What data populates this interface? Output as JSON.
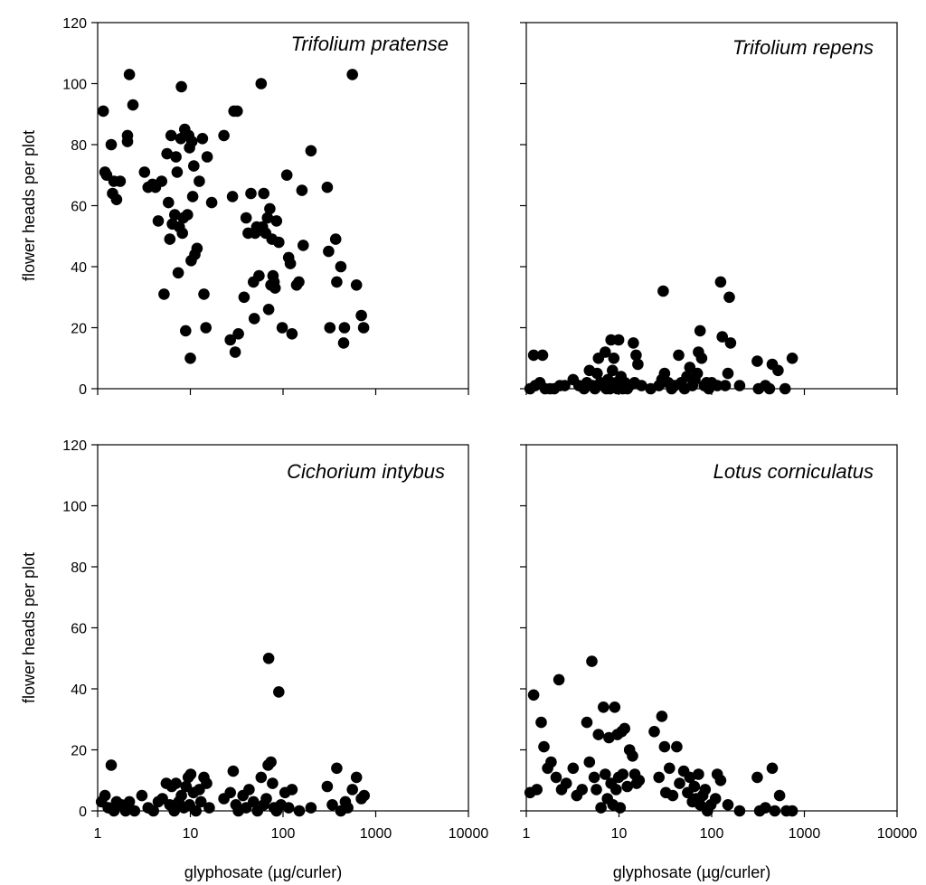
{
  "chart_data": [
    {
      "type": "scatter",
      "panel": "top-left",
      "species": "Trifolium pratense",
      "xscale": "log",
      "xlim": [
        1,
        10000
      ],
      "ylim": [
        0,
        120
      ],
      "xticks": [
        "1",
        "10",
        "100",
        "1000",
        "10000"
      ],
      "yticks": [
        "0",
        "20",
        "40",
        "60",
        "80",
        "100",
        "120"
      ],
      "show_x_tick_labels": false,
      "show_y_tick_labels": true,
      "xlabel": "",
      "ylabel": "flower heads per plot",
      "points": [
        [
          1.15,
          91
        ],
        [
          1.2,
          71
        ],
        [
          1.25,
          70
        ],
        [
          1.4,
          80
        ],
        [
          1.45,
          64
        ],
        [
          1.5,
          68
        ],
        [
          1.6,
          62
        ],
        [
          1.75,
          68
        ],
        [
          2.1,
          83
        ],
        [
          2.1,
          81
        ],
        [
          2.2,
          103
        ],
        [
          2.4,
          93
        ],
        [
          3.2,
          71
        ],
        [
          3.5,
          66
        ],
        [
          3.9,
          67
        ],
        [
          4.2,
          66
        ],
        [
          4.5,
          55
        ],
        [
          4.9,
          68
        ],
        [
          5.2,
          31
        ],
        [
          5.6,
          77
        ],
        [
          5.8,
          61
        ],
        [
          6.0,
          49
        ],
        [
          6.2,
          83
        ],
        [
          6.4,
          54
        ],
        [
          6.8,
          57
        ],
        [
          7.0,
          76
        ],
        [
          7.2,
          71
        ],
        [
          7.4,
          38
        ],
        [
          7.6,
          53
        ],
        [
          7.9,
          82
        ],
        [
          8.0,
          99
        ],
        [
          8.2,
          51
        ],
        [
          8.4,
          56
        ],
        [
          8.7,
          85
        ],
        [
          8.9,
          19
        ],
        [
          9.3,
          57
        ],
        [
          9.6,
          83
        ],
        [
          9.8,
          79
        ],
        [
          10.0,
          10
        ],
        [
          10.2,
          42
        ],
        [
          10.4,
          81
        ],
        [
          10.6,
          63
        ],
        [
          10.9,
          73
        ],
        [
          11.2,
          44
        ],
        [
          11.8,
          46
        ],
        [
          12.5,
          68
        ],
        [
          13.5,
          82
        ],
        [
          14.0,
          31
        ],
        [
          14.7,
          20
        ],
        [
          15.2,
          76
        ],
        [
          17.0,
          61
        ],
        [
          23.0,
          83
        ],
        [
          27.0,
          16
        ],
        [
          28.5,
          63
        ],
        [
          29.5,
          91
        ],
        [
          30.5,
          12
        ],
        [
          32.0,
          91
        ],
        [
          33.0,
          18
        ],
        [
          38.0,
          30
        ],
        [
          40.0,
          56
        ],
        [
          42.0,
          51
        ],
        [
          45.0,
          64
        ],
        [
          48.0,
          35
        ],
        [
          49.0,
          23
        ],
        [
          50.0,
          51
        ],
        [
          52.0,
          53
        ],
        [
          55.0,
          37
        ],
        [
          58.0,
          100
        ],
        [
          60.0,
          53
        ],
        [
          62.0,
          64
        ],
        [
          65.0,
          51
        ],
        [
          68.0,
          56
        ],
        [
          70.0,
          26
        ],
        [
          72.0,
          59
        ],
        [
          74.0,
          34
        ],
        [
          76.0,
          49
        ],
        [
          78.0,
          37
        ],
        [
          80.0,
          35
        ],
        [
          82.0,
          33
        ],
        [
          85.0,
          55
        ],
        [
          90.0,
          48
        ],
        [
          98.0,
          20
        ],
        [
          110.0,
          70
        ],
        [
          115.0,
          43
        ],
        [
          120.0,
          41
        ],
        [
          125.0,
          18
        ],
        [
          140.0,
          34
        ],
        [
          148.0,
          35
        ],
        [
          160.0,
          65
        ],
        [
          165.0,
          47
        ],
        [
          200.0,
          78
        ],
        [
          300.0,
          66
        ],
        [
          310.0,
          45
        ],
        [
          320.0,
          20
        ],
        [
          370.0,
          49
        ],
        [
          380.0,
          35
        ],
        [
          420.0,
          40
        ],
        [
          450.0,
          15
        ],
        [
          460.0,
          20
        ],
        [
          560.0,
          103
        ],
        [
          620.0,
          34
        ],
        [
          700.0,
          24
        ],
        [
          740.0,
          20
        ]
      ]
    },
    {
      "type": "scatter",
      "panel": "top-right",
      "species": "Trifolium repens",
      "xscale": "log",
      "xlim": [
        1,
        10000
      ],
      "ylim": [
        0,
        120
      ],
      "xticks": [
        "1",
        "10",
        "100",
        "1000",
        "10000"
      ],
      "yticks": [
        "0",
        "20",
        "40",
        "60",
        "80",
        "100",
        "120"
      ],
      "show_x_tick_labels": false,
      "show_y_tick_labels": false,
      "xlabel": "",
      "ylabel": "",
      "points": [
        [
          1.1,
          0
        ],
        [
          1.2,
          11
        ],
        [
          1.25,
          1
        ],
        [
          1.4,
          2
        ],
        [
          1.5,
          11
        ],
        [
          1.6,
          0
        ],
        [
          1.8,
          0
        ],
        [
          2.0,
          0
        ],
        [
          2.3,
          1
        ],
        [
          2.6,
          1
        ],
        [
          3.2,
          3
        ],
        [
          3.7,
          1
        ],
        [
          4.2,
          0
        ],
        [
          4.5,
          2
        ],
        [
          4.8,
          6
        ],
        [
          5.2,
          1
        ],
        [
          5.5,
          0
        ],
        [
          5.8,
          5
        ],
        [
          6.0,
          10
        ],
        [
          6.3,
          2
        ],
        [
          6.7,
          1
        ],
        [
          7.1,
          12
        ],
        [
          7.3,
          0
        ],
        [
          7.6,
          3
        ],
        [
          8.0,
          0
        ],
        [
          8.2,
          16
        ],
        [
          8.5,
          6
        ],
        [
          8.8,
          10
        ],
        [
          9.3,
          2
        ],
        [
          9.6,
          0
        ],
        [
          9.9,
          16
        ],
        [
          10.2,
          1
        ],
        [
          10.5,
          4
        ],
        [
          11.0,
          0
        ],
        [
          11.6,
          2
        ],
        [
          12.3,
          0
        ],
        [
          13.0,
          1
        ],
        [
          14.3,
          15
        ],
        [
          14.7,
          2
        ],
        [
          15.3,
          11
        ],
        [
          16.0,
          8
        ],
        [
          17.5,
          1
        ],
        [
          22.0,
          0
        ],
        [
          27.0,
          1
        ],
        [
          29.0,
          3
        ],
        [
          30.0,
          32
        ],
        [
          31.0,
          5
        ],
        [
          34.0,
          2
        ],
        [
          37.0,
          0
        ],
        [
          40.0,
          1
        ],
        [
          44.0,
          11
        ],
        [
          47.0,
          2
        ],
        [
          51.0,
          0
        ],
        [
          54.0,
          4
        ],
        [
          58.0,
          7
        ],
        [
          62.0,
          1
        ],
        [
          66.0,
          3
        ],
        [
          70.0,
          5
        ],
        [
          72.0,
          12
        ],
        [
          75.0,
          19
        ],
        [
          78.0,
          10
        ],
        [
          83.0,
          1
        ],
        [
          88.0,
          2
        ],
        [
          93.0,
          0
        ],
        [
          100.0,
          2
        ],
        [
          115.0,
          1
        ],
        [
          125.0,
          35
        ],
        [
          130.0,
          17
        ],
        [
          140.0,
          1
        ],
        [
          150.0,
          5
        ],
        [
          155.0,
          30
        ],
        [
          160.0,
          15
        ],
        [
          200.0,
          1
        ],
        [
          310.0,
          9
        ],
        [
          320.0,
          0
        ],
        [
          380.0,
          1
        ],
        [
          420.0,
          0
        ],
        [
          450.0,
          8
        ],
        [
          520.0,
          6
        ],
        [
          620.0,
          0
        ],
        [
          740.0,
          10
        ]
      ]
    },
    {
      "type": "scatter",
      "panel": "bottom-left",
      "species": "Cichorium intybus",
      "xscale": "log",
      "xlim": [
        1,
        10000
      ],
      "ylim": [
        0,
        120
      ],
      "xticks": [
        "1",
        "10",
        "100",
        "1000",
        "10000"
      ],
      "yticks": [
        "0",
        "20",
        "40",
        "60",
        "80",
        "100",
        "120"
      ],
      "show_x_tick_labels": true,
      "show_y_tick_labels": true,
      "xlabel": "glyphosate (µg/curler)",
      "ylabel": "flower heads per plot",
      "points": [
        [
          1.1,
          3
        ],
        [
          1.2,
          5
        ],
        [
          1.3,
          1
        ],
        [
          1.4,
          15
        ],
        [
          1.5,
          0
        ],
        [
          1.6,
          3
        ],
        [
          1.8,
          2
        ],
        [
          2.0,
          0
        ],
        [
          2.2,
          3
        ],
        [
          2.5,
          0
        ],
        [
          3.0,
          5
        ],
        [
          3.5,
          1
        ],
        [
          4.0,
          0
        ],
        [
          4.5,
          3
        ],
        [
          5.0,
          4
        ],
        [
          5.5,
          9
        ],
        [
          6.0,
          2
        ],
        [
          6.3,
          8
        ],
        [
          6.7,
          0
        ],
        [
          7.0,
          9
        ],
        [
          7.5,
          3
        ],
        [
          8.0,
          5
        ],
        [
          8.5,
          1
        ],
        [
          9.0,
          8
        ],
        [
          9.5,
          11
        ],
        [
          9.8,
          2
        ],
        [
          10.1,
          12
        ],
        [
          10.8,
          6
        ],
        [
          11.5,
          0
        ],
        [
          12.5,
          7
        ],
        [
          13.0,
          3
        ],
        [
          14.0,
          11
        ],
        [
          15.0,
          9
        ],
        [
          16.0,
          1
        ],
        [
          23.0,
          4
        ],
        [
          27.0,
          6
        ],
        [
          29.0,
          13
        ],
        [
          31.0,
          2
        ],
        [
          33.0,
          0
        ],
        [
          37.0,
          5
        ],
        [
          40.0,
          1
        ],
        [
          43.0,
          7
        ],
        [
          48.0,
          3
        ],
        [
          53.0,
          0
        ],
        [
          58.0,
          11
        ],
        [
          62.0,
          2
        ],
        [
          66.0,
          4
        ],
        [
          69.0,
          15
        ],
        [
          70.0,
          50
        ],
        [
          74.0,
          16
        ],
        [
          77.0,
          9
        ],
        [
          80.0,
          1
        ],
        [
          85.0,
          0
        ],
        [
          90.0,
          39
        ],
        [
          95.0,
          2
        ],
        [
          105.0,
          6
        ],
        [
          115.0,
          1
        ],
        [
          125.0,
          7
        ],
        [
          150.0,
          0
        ],
        [
          200.0,
          1
        ],
        [
          300.0,
          8
        ],
        [
          340.0,
          2
        ],
        [
          380.0,
          14
        ],
        [
          420.0,
          0
        ],
        [
          470.0,
          3
        ],
        [
          500.0,
          1
        ],
        [
          560.0,
          7
        ],
        [
          620.0,
          11
        ],
        [
          700.0,
          4
        ],
        [
          750.0,
          5
        ]
      ]
    },
    {
      "type": "scatter",
      "panel": "bottom-right",
      "species": "Lotus corniculatus",
      "xscale": "log",
      "xlim": [
        1,
        10000
      ],
      "ylim": [
        0,
        120
      ],
      "xticks": [
        "1",
        "10",
        "100",
        "1000",
        "10000"
      ],
      "yticks": [
        "0",
        "20",
        "40",
        "60",
        "80",
        "100",
        "120"
      ],
      "show_x_tick_labels": true,
      "show_y_tick_labels": false,
      "xlabel": "glyphosate (µg/curler)",
      "ylabel": "",
      "points": [
        [
          1.1,
          6
        ],
        [
          1.2,
          38
        ],
        [
          1.3,
          7
        ],
        [
          1.45,
          29
        ],
        [
          1.55,
          21
        ],
        [
          1.7,
          14
        ],
        [
          1.85,
          16
        ],
        [
          2.1,
          11
        ],
        [
          2.25,
          43
        ],
        [
          2.4,
          7
        ],
        [
          2.7,
          9
        ],
        [
          3.2,
          14
        ],
        [
          3.5,
          5
        ],
        [
          4.0,
          7
        ],
        [
          4.5,
          29
        ],
        [
          4.8,
          16
        ],
        [
          5.1,
          49
        ],
        [
          5.4,
          11
        ],
        [
          5.7,
          7
        ],
        [
          6.0,
          25
        ],
        [
          6.4,
          1
        ],
        [
          6.8,
          34
        ],
        [
          7.1,
          12
        ],
        [
          7.5,
          4
        ],
        [
          7.8,
          24
        ],
        [
          8.2,
          9
        ],
        [
          8.6,
          2
        ],
        [
          9.0,
          34
        ],
        [
          9.3,
          7
        ],
        [
          9.6,
          25
        ],
        [
          9.9,
          11
        ],
        [
          10.3,
          1
        ],
        [
          10.7,
          26
        ],
        [
          11.0,
          12
        ],
        [
          11.5,
          27
        ],
        [
          12.3,
          8
        ],
        [
          13.0,
          20
        ],
        [
          14.0,
          18
        ],
        [
          14.8,
          12
        ],
        [
          15.5,
          9
        ],
        [
          16.5,
          10
        ],
        [
          24.0,
          26
        ],
        [
          27.0,
          11
        ],
        [
          29.0,
          31
        ],
        [
          31.0,
          21
        ],
        [
          32.0,
          6
        ],
        [
          35.0,
          14
        ],
        [
          38.0,
          5
        ],
        [
          42.0,
          21
        ],
        [
          45.0,
          9
        ],
        [
          50.0,
          13
        ],
        [
          55.0,
          6
        ],
        [
          58.0,
          11
        ],
        [
          62.0,
          3
        ],
        [
          65.0,
          8
        ],
        [
          68.0,
          4
        ],
        [
          72.0,
          12
        ],
        [
          75.0,
          2
        ],
        [
          80.0,
          5
        ],
        [
          85.0,
          7
        ],
        [
          90.0,
          0
        ],
        [
          98.0,
          2
        ],
        [
          110.0,
          4
        ],
        [
          115.0,
          12
        ],
        [
          125.0,
          10
        ],
        [
          150.0,
          2
        ],
        [
          200.0,
          0
        ],
        [
          310.0,
          11
        ],
        [
          330.0,
          0
        ],
        [
          380.0,
          1
        ],
        [
          450.0,
          14
        ],
        [
          480.0,
          0
        ],
        [
          540.0,
          5
        ],
        [
          640.0,
          0
        ],
        [
          740.0,
          0
        ]
      ]
    }
  ]
}
